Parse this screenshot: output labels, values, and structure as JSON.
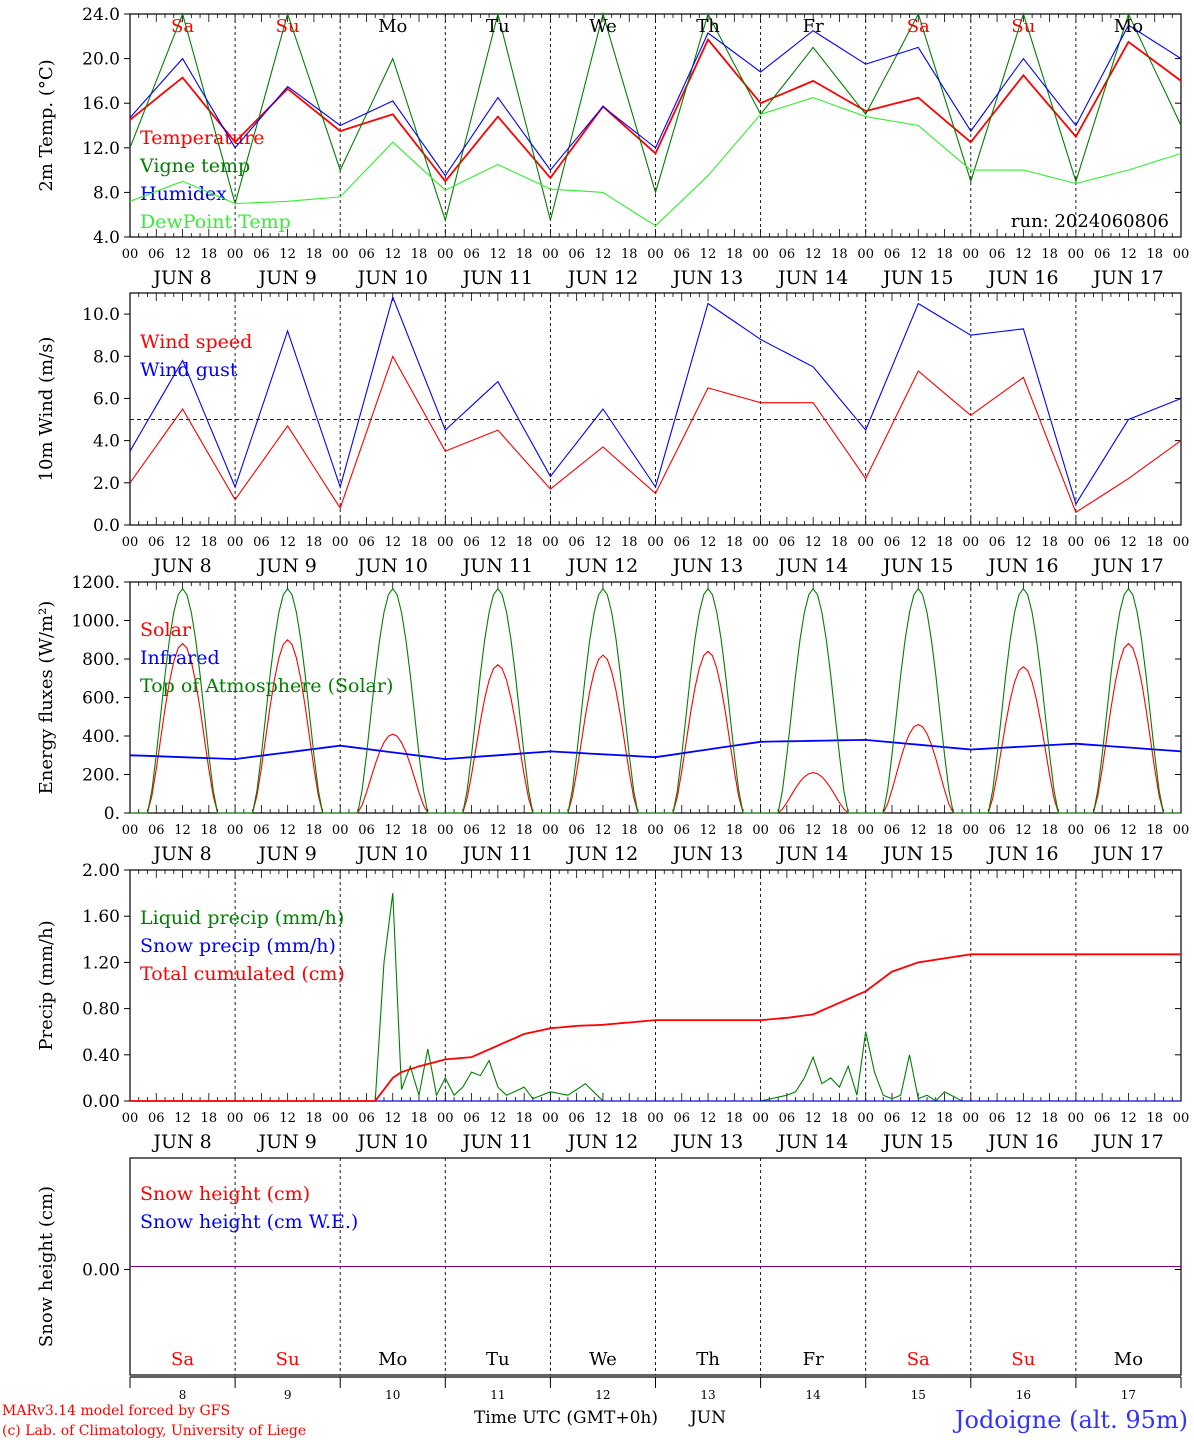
{
  "location_label": "Jodoigne (alt. 95m)",
  "footer": {
    "line1": "MARv3.14 model forced by GFS",
    "line2": "(c) Lab. of Climatology, University of Liege"
  },
  "x_axis": {
    "hours": [
      "00",
      "06",
      "12",
      "18"
    ],
    "final_hour": "00",
    "days": [
      "8",
      "9",
      "10",
      "11",
      "12",
      "13",
      "14",
      "15",
      "16",
      "17"
    ],
    "month": "JUN",
    "weekdays": [
      "Sa",
      "Su",
      "Mo",
      "Tu",
      "We",
      "Th",
      "Fr",
      "Sa",
      "Su",
      "Mo"
    ],
    "weekend": [
      true,
      true,
      false,
      false,
      false,
      false,
      false,
      true,
      true,
      false
    ],
    "bottom_label": "Time UTC (GMT+0h)",
    "bottom_month": "JUN"
  },
  "colors": {
    "red": "#ff0000",
    "green": "#008000",
    "blue": "#0000ff",
    "lightgreen": "#33ee33",
    "purple": "#800080",
    "label_blue": "#3333ff"
  },
  "chart_data": [
    {
      "type": "line",
      "ylabel": "2m Temp. (°C)",
      "ylim": [
        4,
        24
      ],
      "yticks": [
        "4.0",
        "8.0",
        "12.0",
        "16.0",
        "20.0",
        "24.0"
      ],
      "ytick_values": [
        4,
        8,
        12,
        16,
        20,
        24
      ],
      "annotation": "run: 2024060806",
      "series": [
        {
          "name": "Temperature",
          "color": "red",
          "x": [
            0,
            12,
            24,
            36,
            48,
            60,
            72,
            84,
            96,
            108,
            120,
            132,
            144,
            156,
            168,
            180,
            192,
            204,
            216,
            228,
            240
          ],
          "values": [
            14.5,
            18.3,
            12.5,
            17.3,
            13.5,
            15.0,
            9.0,
            14.8,
            9.3,
            15.7,
            11.5,
            21.7,
            16.0,
            18.0,
            15.3,
            16.5,
            12.5,
            18.5,
            13.0,
            21.5,
            18.0
          ]
        },
        {
          "name": "Vigne temp",
          "color": "green",
          "x": [
            0,
            12,
            24,
            36,
            48,
            60,
            72,
            84,
            96,
            108,
            120,
            132,
            144,
            156,
            168,
            180,
            192,
            204,
            216,
            228,
            240
          ],
          "values": [
            12.0,
            24.0,
            7.0,
            24.0,
            10.0,
            20.0,
            5.5,
            24.0,
            5.5,
            24.0,
            8.0,
            24.0,
            15.0,
            21.0,
            15.0,
            24.0,
            9.0,
            24.0,
            9.0,
            24.0,
            14.0
          ]
        },
        {
          "name": "Humidex",
          "color": "blue",
          "x": [
            0,
            12,
            24,
            36,
            48,
            60,
            72,
            84,
            96,
            108,
            120,
            132,
            144,
            156,
            168,
            180,
            192,
            204,
            216,
            228,
            240
          ],
          "values": [
            14.7,
            20.0,
            12.0,
            17.5,
            14.0,
            16.2,
            9.5,
            16.5,
            10.0,
            15.7,
            12.0,
            22.3,
            18.8,
            22.5,
            19.5,
            21.0,
            13.5,
            20.0,
            14.0,
            23.0,
            20.0
          ]
        },
        {
          "name": "DewPoint Temp",
          "color": "lightgreen",
          "x": [
            0,
            12,
            24,
            36,
            48,
            60,
            72,
            84,
            96,
            108,
            120,
            132,
            144,
            156,
            168,
            180,
            192,
            204,
            216,
            228,
            240
          ],
          "values": [
            7.2,
            9.0,
            7.0,
            7.2,
            7.6,
            12.5,
            8.2,
            10.5,
            8.3,
            8.0,
            5.0,
            9.5,
            15.0,
            16.5,
            14.8,
            14.0,
            10.0,
            10.0,
            8.8,
            10.0,
            11.5
          ]
        }
      ]
    },
    {
      "type": "line",
      "ylabel": "10m Wind (m/s)",
      "ylim": [
        0,
        11
      ],
      "yticks": [
        "0.0",
        "2.0",
        "4.0",
        "6.0",
        "8.0",
        "10.0"
      ],
      "ytick_values": [
        0,
        2,
        4,
        6,
        8,
        10
      ],
      "reference_line": 5,
      "series": [
        {
          "name": "Wind speed",
          "color": "red",
          "x": [
            0,
            12,
            24,
            36,
            48,
            60,
            72,
            84,
            96,
            108,
            120,
            132,
            144,
            156,
            168,
            180,
            192,
            204,
            216,
            228,
            240
          ],
          "values": [
            2.0,
            5.5,
            1.2,
            4.7,
            0.8,
            8.0,
            3.5,
            4.5,
            1.7,
            3.7,
            1.5,
            6.5,
            5.8,
            5.8,
            2.2,
            7.3,
            5.2,
            7.0,
            0.6,
            2.2,
            4.0
          ]
        },
        {
          "name": "Wind gust",
          "color": "blue",
          "x": [
            0,
            12,
            24,
            36,
            48,
            60,
            72,
            84,
            96,
            108,
            120,
            132,
            144,
            156,
            168,
            180,
            192,
            204,
            216,
            228,
            240
          ],
          "values": [
            3.5,
            7.8,
            1.8,
            9.2,
            1.8,
            10.8,
            4.5,
            6.8,
            2.3,
            5.5,
            1.8,
            10.5,
            8.8,
            7.5,
            4.5,
            10.5,
            9.0,
            9.3,
            1.0,
            5.0,
            6.0
          ]
        }
      ]
    },
    {
      "type": "line",
      "ylabel": "Energy fluxes (W/m²)",
      "ylim": [
        0,
        1200
      ],
      "yticks": [
        "0.",
        "200.",
        "400.",
        "600.",
        "800.",
        "1000.",
        "1200."
      ],
      "ytick_values": [
        0,
        200,
        400,
        600,
        800,
        1000,
        1200
      ],
      "series": [
        {
          "name": "Solar",
          "color": "red",
          "daily_peak": [
            880,
            900,
            410,
            770,
            820,
            840,
            210,
            460,
            760,
            880
          ]
        },
        {
          "name": "Infrared",
          "color": "blue",
          "x": [
            0,
            24,
            48,
            72,
            96,
            120,
            144,
            168,
            192,
            216,
            240
          ],
          "values": [
            300,
            280,
            350,
            280,
            320,
            290,
            370,
            380,
            330,
            360,
            320
          ]
        },
        {
          "name": "Top of Atmosphere (Solar)",
          "color": "green",
          "daily_peak": 1165
        }
      ]
    },
    {
      "type": "line",
      "ylabel": "Precip (mm/h)",
      "ylim": [
        0,
        2
      ],
      "yticks": [
        "0.00",
        "0.40",
        "0.80",
        "1.20",
        "1.60",
        "2.00"
      ],
      "ytick_values": [
        0,
        0.4,
        0.8,
        1.2,
        1.6,
        2.0
      ],
      "series": [
        {
          "name": "Liquid precip (mm/h)",
          "color": "green",
          "x": [
            0,
            56,
            58,
            60,
            62,
            64,
            66,
            68,
            70,
            72,
            74,
            76,
            78,
            80,
            82,
            84,
            86,
            90,
            92,
            96,
            100,
            104,
            108,
            114,
            144,
            150,
            152,
            154,
            156,
            158,
            160,
            162,
            164,
            166,
            168,
            170,
            172,
            174,
            176,
            178,
            180,
            182,
            184,
            186,
            190,
            240
          ],
          "values": [
            0,
            0,
            1.2,
            1.8,
            0.1,
            0.3,
            0.05,
            0.45,
            0.05,
            0.2,
            0.05,
            0.12,
            0.25,
            0.22,
            0.35,
            0.12,
            0.05,
            0.12,
            0.02,
            0.08,
            0.05,
            0.15,
            0,
            0,
            0,
            0.05,
            0.08,
            0.2,
            0.38,
            0.15,
            0.2,
            0.12,
            0.3,
            0.05,
            0.6,
            0.25,
            0.05,
            0.02,
            0.05,
            0.4,
            0.02,
            0.05,
            0,
            0.08,
            0,
            0
          ]
        },
        {
          "name": "Snow precip (mm/h)",
          "color": "blue",
          "x": [
            0,
            240
          ],
          "values": [
            0,
            0
          ]
        },
        {
          "name": "Total cumulated (cm)",
          "color": "red",
          "x": [
            0,
            56,
            58,
            60,
            62,
            66,
            72,
            78,
            84,
            90,
            96,
            102,
            108,
            120,
            144,
            150,
            156,
            162,
            168,
            174,
            180,
            192,
            240
          ],
          "values": [
            0,
            0,
            0.1,
            0.2,
            0.25,
            0.3,
            0.36,
            0.38,
            0.48,
            0.58,
            0.63,
            0.65,
            0.66,
            0.7,
            0.7,
            0.72,
            0.75,
            0.85,
            0.95,
            1.12,
            1.2,
            1.27,
            1.27
          ]
        }
      ]
    },
    {
      "type": "line",
      "ylabel": "Snow height (cm)",
      "yticks": [
        "0.00"
      ],
      "ytick_values": [
        0
      ],
      "series": [
        {
          "name": "Snow height (cm)",
          "color": "red",
          "x": [
            0,
            240
          ],
          "values": [
            0,
            0
          ]
        },
        {
          "name": "Snow height (cm W.E.)",
          "color": "blue",
          "x": [
            0,
            240
          ],
          "values": [
            0,
            0
          ]
        }
      ]
    }
  ]
}
